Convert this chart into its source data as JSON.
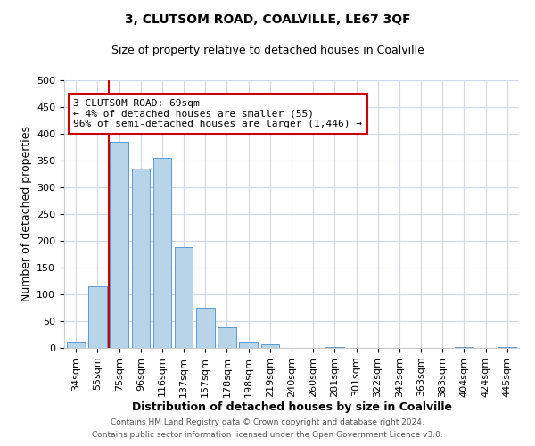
{
  "title": "3, CLUTSOM ROAD, COALVILLE, LE67 3QF",
  "subtitle": "Size of property relative to detached houses in Coalville",
  "xlabel": "Distribution of detached houses by size in Coalville",
  "ylabel": "Number of detached properties",
  "bar_labels": [
    "34sqm",
    "55sqm",
    "75sqm",
    "96sqm",
    "116sqm",
    "137sqm",
    "157sqm",
    "178sqm",
    "198sqm",
    "219sqm",
    "240sqm",
    "260sqm",
    "281sqm",
    "301sqm",
    "322sqm",
    "342sqm",
    "363sqm",
    "383sqm",
    "404sqm",
    "424sqm",
    "445sqm"
  ],
  "bar_values": [
    12,
    115,
    385,
    335,
    355,
    188,
    75,
    38,
    12,
    6,
    0,
    0,
    2,
    0,
    0,
    0,
    0,
    0,
    2,
    0,
    2
  ],
  "bar_color": "#b8d4e8",
  "bar_edge_color": "#5b9bd5",
  "marker_line_color": "#cc0000",
  "annotation_text": "3 CLUTSOM ROAD: 69sqm\n← 4% of detached houses are smaller (55)\n96% of semi-detached houses are larger (1,446) →",
  "annotation_box_color": "#ffffff",
  "annotation_box_edge_color": "#cc0000",
  "ylim": [
    0,
    500
  ],
  "yticks": [
    0,
    50,
    100,
    150,
    200,
    250,
    300,
    350,
    400,
    450,
    500
  ],
  "footer_line1": "Contains HM Land Registry data © Crown copyright and database right 2024.",
  "footer_line2": "Contains public sector information licensed under the Open Government Licence v3.0.",
  "bg_color": "#ffffff",
  "grid_color": "#d0d8e8",
  "title_fontsize": 10,
  "subtitle_fontsize": 9,
  "xlabel_fontsize": 9,
  "ylabel_fontsize": 9,
  "tick_fontsize": 8,
  "annotation_fontsize": 8,
  "footer_fontsize": 6.5
}
